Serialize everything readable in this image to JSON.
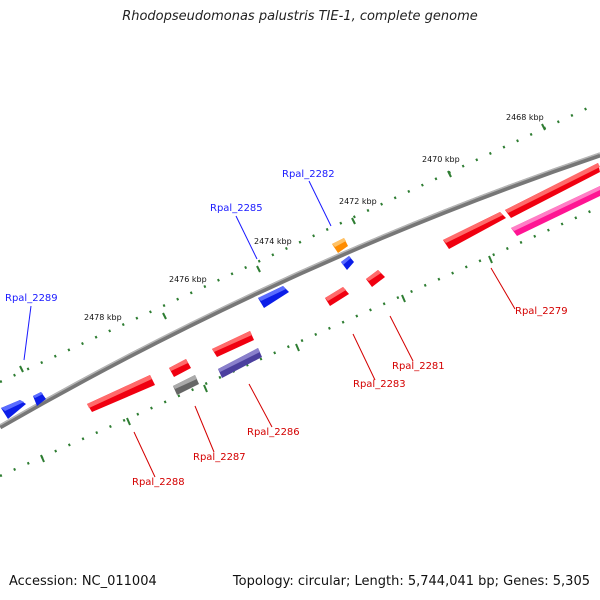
{
  "title": "Rhodopseudomonas palustris TIE-1, complete genome",
  "footer": {
    "accession": "Accession: NC_011004",
    "stats": "Topology: circular; Length: 5,744,041 bp; Genes: 5,305"
  },
  "ticks": [
    "2468 kbp",
    "2470 kbp",
    "2472 kbp",
    "2474 kbp",
    "2476 kbp",
    "2478 kbp"
  ],
  "gene_labels": [
    "Rpal_2289",
    "Rpal_2285",
    "Rpal_2282",
    "Rpal_2279",
    "Rpal_2281",
    "Rpal_2283",
    "Rpal_2286",
    "Rpal_2287",
    "Rpal_2288"
  ],
  "colors": {
    "backbone": "#7a7a7a",
    "tick": "#2e7d32",
    "blue": "#0b1de8",
    "red": "#f00010",
    "orange": "#ff8c00",
    "gray": "#666666",
    "purple": "#4b3f9e",
    "pink": "#ff1493",
    "label_blue": "#1a1aff",
    "label_red": "#d40000"
  }
}
